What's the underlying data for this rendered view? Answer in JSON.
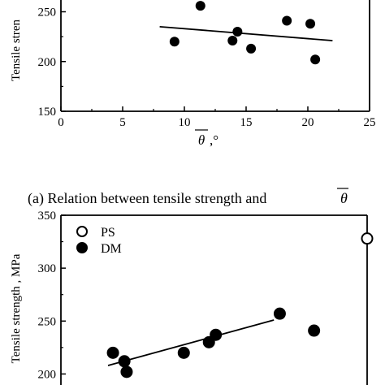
{
  "chart_data": [
    {
      "type": "scatter",
      "caption": "(a) Relation between tensile strength and",
      "caption_symbol": "θ",
      "xlabel": "θ",
      "xlabel_unit": ",°",
      "ylabel": "Tensile stren",
      "xlim": [
        0,
        25
      ],
      "ylim": [
        150,
        270
      ],
      "x_ticks": [
        "0",
        "5",
        "10",
        "15",
        "20",
        "25"
      ],
      "y_ticks": [
        "150",
        "200",
        "250"
      ],
      "series": [
        {
          "marker": "filled-circle",
          "x": [
            9.2,
            11.3,
            13.9,
            14.3,
            15.4,
            18.3,
            20.2,
            20.6
          ],
          "y": [
            220,
            256,
            221,
            230,
            213,
            241,
            238,
            202
          ]
        }
      ],
      "trendline": {
        "x": [
          8,
          22
        ],
        "y": [
          235,
          221
        ]
      }
    },
    {
      "type": "scatter",
      "ylabel": "Tensile strength , MPa",
      "ylim": [
        175,
        350
      ],
      "y_ticks": [
        "200",
        "250",
        "300",
        "350"
      ],
      "legend": [
        {
          "label": "PS",
          "marker": "open-circle"
        },
        {
          "label": "DM",
          "marker": "filled-circle"
        }
      ],
      "series": [
        {
          "name": "DM",
          "marker": "filled-circle",
          "x": [
            0.5,
            1,
            1.1,
            3.6,
            4.7,
            5.0,
            7.8,
            9.3
          ],
          "y": [
            220,
            212,
            202,
            220,
            230,
            237,
            257,
            241
          ]
        },
        {
          "name": "PS",
          "marker": "open-circle",
          "x": [
            14.8
          ],
          "y": [
            328
          ]
        }
      ],
      "trendline": {
        "x": [
          0,
          9
        ],
        "y": [
          208,
          251
        ]
      }
    }
  ]
}
